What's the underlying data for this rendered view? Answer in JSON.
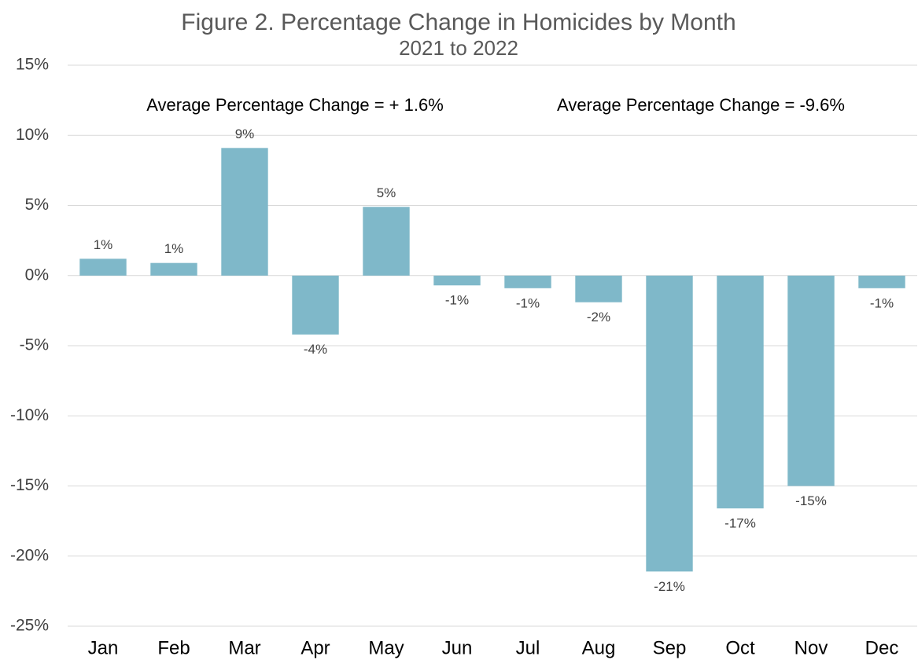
{
  "chart_data": {
    "type": "bar",
    "title": "Figure 2. Percentage Change in Homicides by Month",
    "subtitle": "2021 to 2022",
    "annotations": [
      "Average Percentage Change = + 1.6%",
      "Average Percentage Change = -9.6%"
    ],
    "categories": [
      "Jan",
      "Feb",
      "Mar",
      "Apr",
      "May",
      "Jun",
      "Jul",
      "Aug",
      "Sep",
      "Oct",
      "Nov",
      "Dec"
    ],
    "values": [
      1.2,
      0.9,
      9.1,
      -4.2,
      4.9,
      -0.7,
      -0.9,
      -1.9,
      -21.1,
      -16.6,
      -15.0,
      -0.9
    ],
    "value_labels": [
      "1%",
      "1%",
      "9%",
      "-4%",
      "5%",
      "-1%",
      "-1%",
      "-2%",
      "-21%",
      "-17%",
      "-15%",
      "-1%"
    ],
    "color": "#7fb8c9",
    "ylim": [
      -25,
      15
    ],
    "yticks": [
      {
        "value": 15,
        "label": "15%"
      },
      {
        "value": 10,
        "label": "10%"
      },
      {
        "value": 5,
        "label": "5%"
      },
      {
        "value": 0,
        "label": "0%"
      },
      {
        "value": -5,
        "label": "-5%"
      },
      {
        "value": -10,
        "label": "-10%"
      },
      {
        "value": -15,
        "label": "-15%"
      },
      {
        "value": -20,
        "label": "-20%"
      },
      {
        "value": -25,
        "label": "-25%"
      }
    ],
    "grid": true
  }
}
